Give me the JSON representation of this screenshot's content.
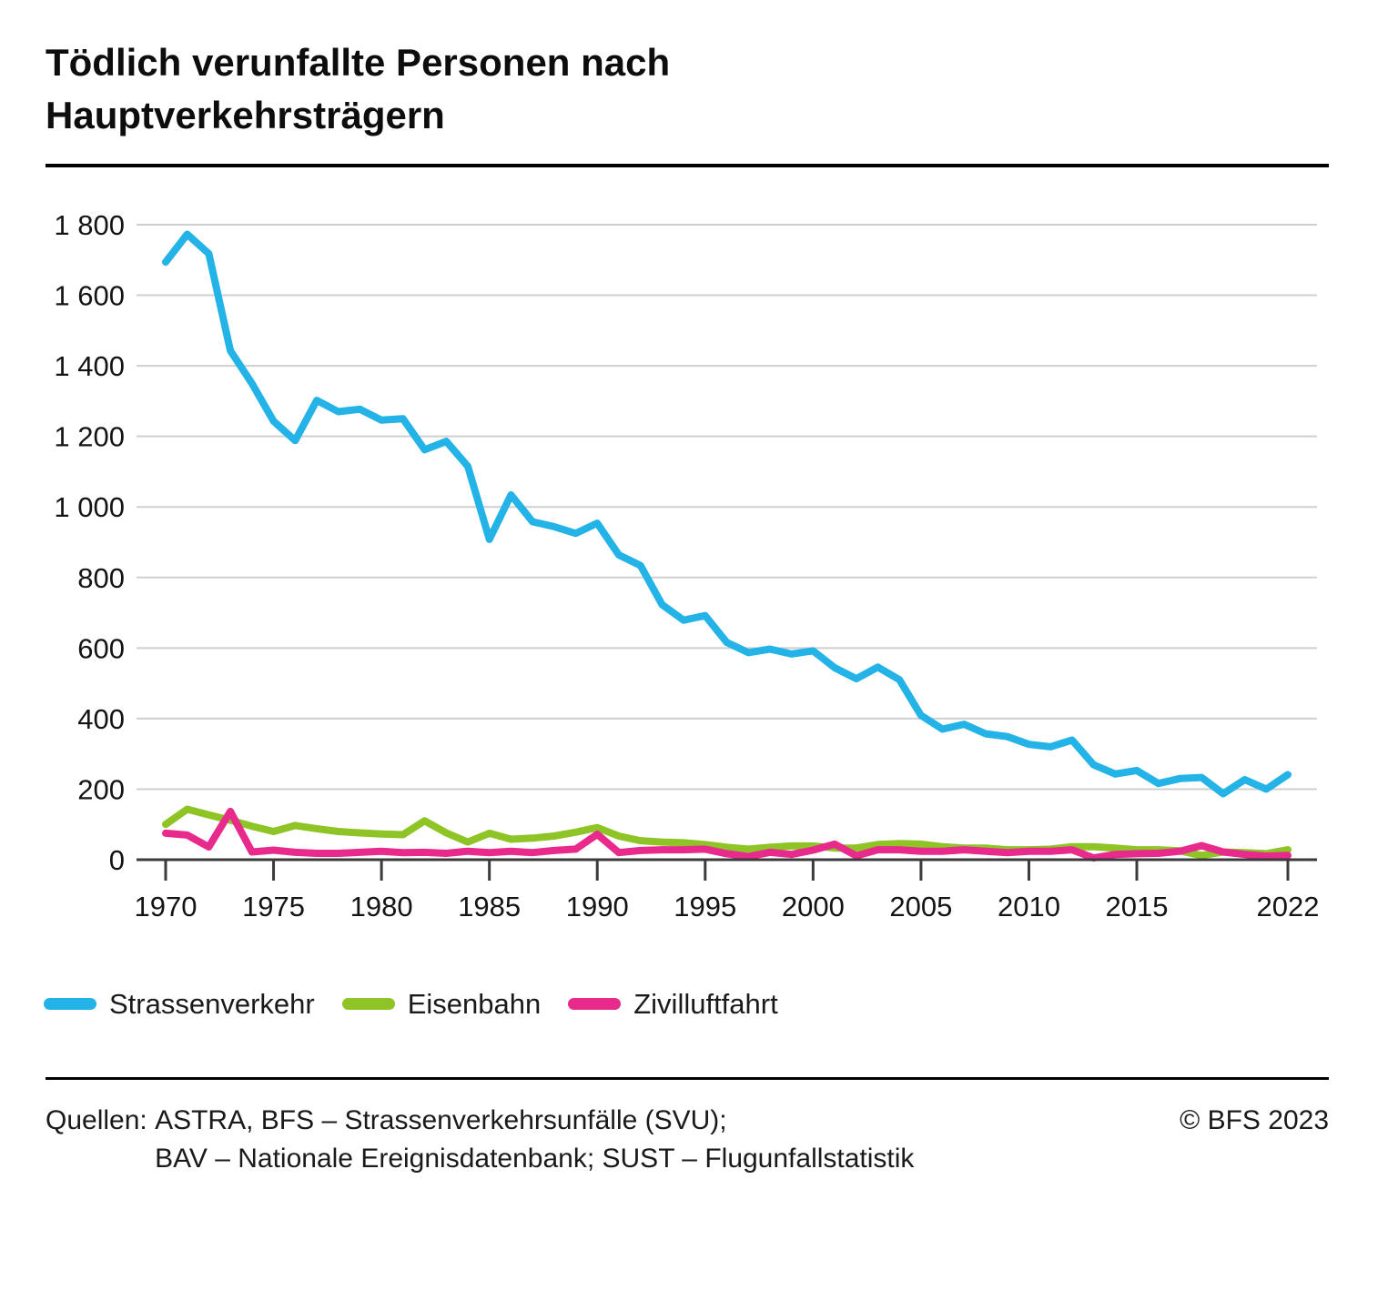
{
  "title": "Tödlich verunfallte Personen nach\nHauptverkehrsträgern",
  "legend": {
    "items": [
      {
        "label": "Strassenverkehr",
        "color": "#24b3e6"
      },
      {
        "label": "Eisenbahn",
        "color": "#8ec425"
      },
      {
        "label": "Zivilluftfahrt",
        "color": "#e72a8c"
      }
    ]
  },
  "footer": {
    "sources_prefix": "Quellen: ",
    "sources_line1": "ASTRA, BFS – Strassenverkehrsunfälle (SVU);",
    "sources_line2": "BAV – Nationale Ereignisdatenbank; SUST – Flugunfallstatistik",
    "copyright": "© BFS 2023"
  },
  "chart_data": {
    "type": "line",
    "title": "Tödlich verunfallte Personen nach Hauptverkehrsträgern",
    "xlabel": "",
    "ylabel": "",
    "ylim": [
      0,
      1800
    ],
    "xlim": [
      1970,
      2022
    ],
    "grid": "horizontal",
    "legend_position": "bottom",
    "colors": {
      "grid": "#cfcfcf",
      "axis": "#3b3b3b",
      "tick_text": "#141414"
    },
    "y_ticks": [
      {
        "value": 0,
        "label": "0"
      },
      {
        "value": 200,
        "label": "200"
      },
      {
        "value": 400,
        "label": "400"
      },
      {
        "value": 600,
        "label": "600"
      },
      {
        "value": 800,
        "label": "800"
      },
      {
        "value": 1000,
        "label": "1 000"
      },
      {
        "value": 1200,
        "label": "1 200"
      },
      {
        "value": 1400,
        "label": "1 400"
      },
      {
        "value": 1600,
        "label": "1 600"
      },
      {
        "value": 1800,
        "label": "1 800"
      }
    ],
    "x_label_ticks": [
      1970,
      1975,
      1980,
      1985,
      1990,
      1995,
      2000,
      2005,
      2010,
      2015,
      2022
    ],
    "x": [
      1970,
      1971,
      1972,
      1973,
      1974,
      1975,
      1976,
      1977,
      1978,
      1979,
      1980,
      1981,
      1982,
      1983,
      1984,
      1985,
      1986,
      1987,
      1988,
      1989,
      1990,
      1991,
      1992,
      1993,
      1994,
      1995,
      1996,
      1997,
      1998,
      1999,
      2000,
      2001,
      2002,
      2003,
      2004,
      2005,
      2006,
      2007,
      2008,
      2009,
      2010,
      2011,
      2012,
      2013,
      2014,
      2015,
      2016,
      2017,
      2018,
      2019,
      2020,
      2021,
      2022
    ],
    "series": [
      {
        "name": "Strassenverkehr",
        "color": "#24b3e6",
        "values": [
          1694,
          1773,
          1718,
          1443,
          1350,
          1243,
          1188,
          1302,
          1270,
          1277,
          1246,
          1250,
          1162,
          1186,
          1115,
          908,
          1034,
          958,
          944,
          925,
          954,
          864,
          834,
          723,
          679,
          692,
          616,
          587,
          597,
          583,
          592,
          544,
          513,
          546,
          510,
          409,
          370,
          384,
          357,
          349,
          327,
          320,
          339,
          269,
          243,
          253,
          216,
          230,
          233,
          187,
          227,
          200,
          241
        ]
      },
      {
        "name": "Eisenbahn",
        "color": "#8ec425",
        "values": [
          100,
          143,
          127,
          112,
          95,
          80,
          97,
          88,
          80,
          76,
          73,
          71,
          110,
          76,
          50,
          75,
          58,
          61,
          67,
          78,
          91,
          67,
          54,
          50,
          48,
          43,
          35,
          30,
          35,
          39,
          39,
          33,
          33,
          43,
          46,
          44,
          37,
          33,
          33,
          28,
          28,
          30,
          37,
          37,
          33,
          28,
          28,
          25,
          12,
          22,
          20,
          17,
          28
        ]
      },
      {
        "name": "Zivilluftfahrt",
        "color": "#e72a8c",
        "values": [
          75,
          70,
          36,
          137,
          22,
          27,
          21,
          18,
          18,
          21,
          24,
          20,
          21,
          18,
          24,
          20,
          24,
          20,
          26,
          30,
          72,
          20,
          26,
          28,
          28,
          30,
          17,
          9,
          21,
          15,
          27,
          44,
          11,
          28,
          28,
          24,
          24,
          28,
          24,
          20,
          24,
          24,
          28,
          5,
          15,
          17,
          18,
          24,
          40,
          22,
          15,
          10,
          12
        ]
      }
    ]
  }
}
